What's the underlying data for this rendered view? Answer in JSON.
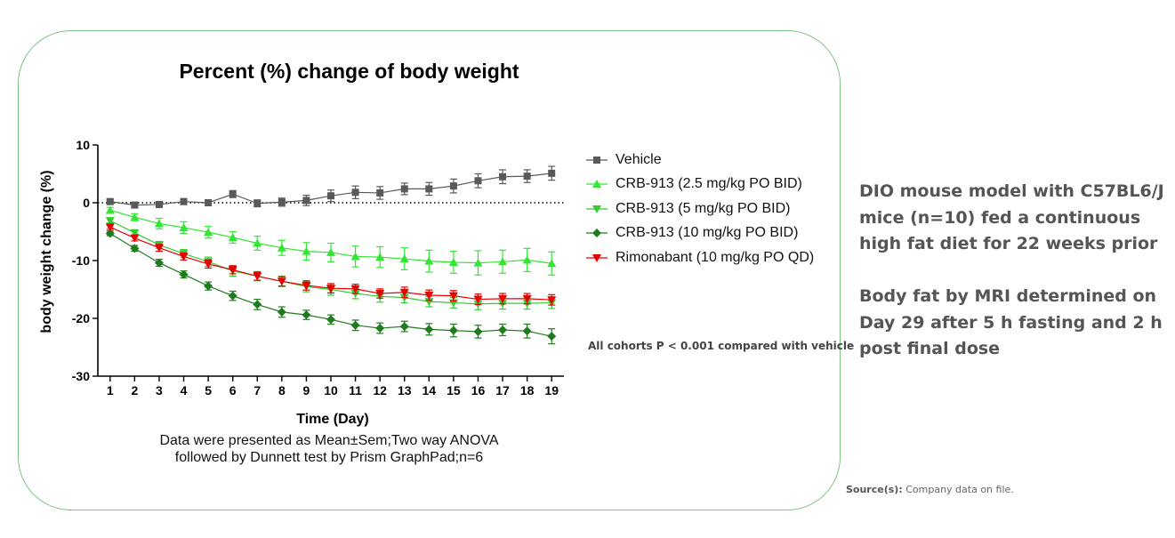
{
  "chart_data": {
    "type": "line",
    "title": "Percent (%) change of body weight",
    "xlabel": "Time (Day)",
    "ylabel": "body weight change (%)",
    "x": [
      1,
      2,
      3,
      4,
      5,
      6,
      7,
      8,
      9,
      10,
      11,
      12,
      13,
      14,
      15,
      16,
      17,
      18,
      19
    ],
    "xlim": [
      0.5,
      19.5
    ],
    "ylim": [
      -30,
      10
    ],
    "yticks": [
      10,
      0,
      -10,
      -20,
      -30
    ],
    "reference_line": {
      "y": 0,
      "style": "dotted"
    },
    "legend_position": "right",
    "grid": false,
    "series": [
      {
        "name": "Vehicle",
        "color": "#595959",
        "marker": "square",
        "values": [
          0.2,
          -0.4,
          -0.3,
          0.2,
          0.0,
          1.5,
          -0.1,
          0.1,
          0.4,
          1.2,
          1.8,
          1.7,
          2.4,
          2.4,
          2.9,
          3.8,
          4.5,
          4.6,
          5.1
        ],
        "err": [
          0.4,
          0.4,
          0.5,
          0.5,
          0.5,
          0.6,
          0.6,
          0.7,
          0.9,
          1.0,
          1.1,
          1.1,
          1.0,
          1.1,
          1.2,
          1.2,
          1.2,
          1.1,
          1.2
        ]
      },
      {
        "name": "CRB-913 (2.5 mg/kg PO BID)",
        "color": "#33e633",
        "marker": "triangle-up",
        "values": [
          -1.3,
          -2.5,
          -3.6,
          -4.3,
          -5.1,
          -6.0,
          -7.0,
          -7.8,
          -8.4,
          -8.6,
          -9.3,
          -9.4,
          -9.7,
          -10.1,
          -10.3,
          -10.4,
          -10.2,
          -9.9,
          -10.5
        ],
        "err": [
          0.5,
          0.6,
          0.9,
          1.0,
          1.0,
          1.0,
          1.2,
          1.3,
          1.5,
          1.6,
          1.8,
          1.8,
          1.9,
          1.9,
          1.9,
          2.1,
          2.0,
          2.0,
          2.0
        ]
      },
      {
        "name": "CRB-913 (5 mg/kg PO BID)",
        "color": "#33cc33",
        "marker": "triangle-down",
        "values": [
          -3.1,
          -5.2,
          -7.3,
          -8.8,
          -10.2,
          -11.8,
          -12.7,
          -13.6,
          -14.5,
          -15.0,
          -15.7,
          -16.2,
          -16.4,
          -17.1,
          -17.3,
          -17.5,
          -17.4,
          -17.4,
          -17.3
        ],
        "err": [
          0.4,
          0.5,
          0.6,
          0.7,
          0.8,
          0.9,
          0.8,
          0.9,
          0.9,
          1.0,
          0.9,
          1.0,
          0.9,
          0.9,
          0.9,
          1.0,
          1.0,
          1.0,
          1.0
        ]
      },
      {
        "name": "CRB-913 (10 mg/kg PO BID)",
        "color": "#1e7b1e",
        "marker": "diamond",
        "values": [
          -5.3,
          -7.9,
          -10.4,
          -12.4,
          -14.4,
          -16.1,
          -17.6,
          -18.9,
          -19.4,
          -20.2,
          -21.2,
          -21.7,
          -21.4,
          -21.9,
          -22.1,
          -22.3,
          -22.0,
          -22.2,
          -23.1
        ],
        "err": [
          0.4,
          0.5,
          0.6,
          0.6,
          0.7,
          0.8,
          0.9,
          0.9,
          0.8,
          0.8,
          0.9,
          0.9,
          0.9,
          1.0,
          1.1,
          1.1,
          1.0,
          1.2,
          1.3
        ]
      },
      {
        "name": "Rimonabant (10 mg/kg PO QD)",
        "color": "#e60000",
        "marker": "triangle-down",
        "values": [
          -4.2,
          -6.1,
          -7.8,
          -9.3,
          -10.6,
          -11.6,
          -12.7,
          -13.6,
          -14.3,
          -14.8,
          -14.9,
          -15.7,
          -15.5,
          -16.0,
          -16.1,
          -16.7,
          -16.6,
          -16.6,
          -16.8
        ],
        "err": [
          0.4,
          0.5,
          0.6,
          0.6,
          0.7,
          0.7,
          0.7,
          0.8,
          0.8,
          0.8,
          0.8,
          0.8,
          0.9,
          0.9,
          0.9,
          0.9,
          0.9,
          0.9,
          0.9
        ]
      }
    ]
  },
  "caption": {
    "line1": "Data were presented as Mean±Sem;Two way ANOVA",
    "line2": "followed by Dunnett test by Prism GraphPad;n=6"
  },
  "note": "All cohorts P < 0.001 compared with vehicle",
  "side_text": {
    "p1": "DIO mouse model with C57BL6/J mice (n=10) fed a continuous high fat diet for 22 weeks prior",
    "p2": "Body fat by MRI determined on Day 29 after 5 h fasting and 2 h post final dose"
  },
  "source": {
    "label": "Source(s):",
    "text": " Company data on file."
  }
}
